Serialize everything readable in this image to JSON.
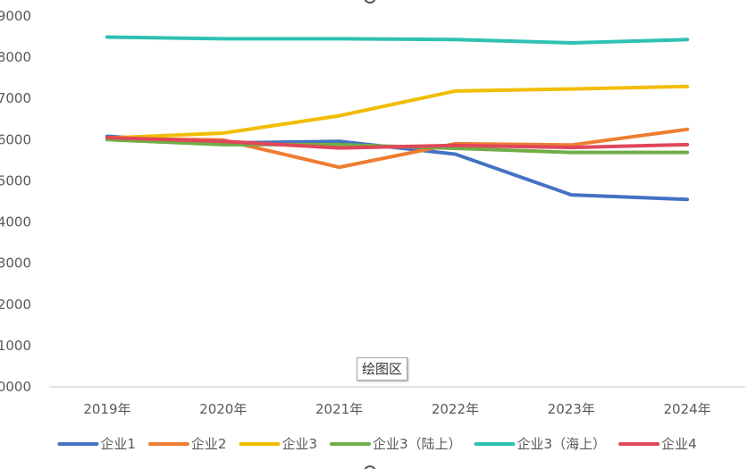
{
  "chart_data": {
    "type": "line",
    "categories": [
      "2019年",
      "2020年",
      "2021年",
      "2022年",
      "2023年",
      "2024年"
    ],
    "y_tick_labels": [
      "0000",
      "1000",
      "2000",
      "3000",
      "4000",
      "5000",
      "6000",
      "7000",
      "8000",
      "9000"
    ],
    "ylim": [
      0,
      9000
    ],
    "grid": false,
    "legend_position": "bottom",
    "series": [
      {
        "name": "企业1",
        "color": "#4472C4",
        "values": [
          6080,
          5920,
          5960,
          5650,
          4660,
          4550
        ]
      },
      {
        "name": "企业2",
        "color": "#ED7D31",
        "values": [
          6030,
          5990,
          5330,
          5900,
          5870,
          6250
        ]
      },
      {
        "name": "企业3",
        "color": "#F2BC00",
        "values": [
          6040,
          6160,
          6580,
          7180,
          7230,
          7290
        ]
      },
      {
        "name": "企业3（陆上）",
        "color": "#70AD47",
        "values": [
          6000,
          5880,
          5880,
          5790,
          5690,
          5690
        ]
      },
      {
        "name": "企业3（海上）",
        "color": "#2EC1B1",
        "values": [
          8490,
          8450,
          8450,
          8430,
          8350,
          8430
        ]
      },
      {
        "name": "企业4",
        "color": "#E0475A",
        "values": [
          6050,
          5960,
          5800,
          5860,
          5810,
          5880
        ]
      }
    ]
  },
  "tooltip": {
    "label": "绘图区"
  }
}
